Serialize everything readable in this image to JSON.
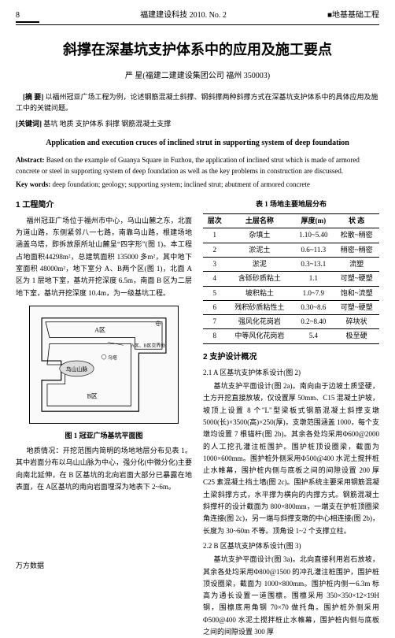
{
  "page_number": "8",
  "journal": "福建建设科技",
  "issue": "2010. No. 2",
  "category": "■地基基础工程",
  "title_cn": "斜撑在深基坑支护体系中的应用及施工要点",
  "author_name": "严  星",
  "author_affil": "(福建二建建设集团公司  福州  350003)",
  "abstract_cn_label": "[摘  要]",
  "abstract_cn": "以福州冠亚广场工程为例，论述钢筋混凝土斜撑、钢斜撑两种斜撑方式在深基坑支护体系中的具体应用及施工中的关键问题。",
  "keywords_cn_label": "[关键词]",
  "keywords_cn": "基坑  地质  支护体系  斜撑  钢筋混凝土支撑",
  "title_en": "Application and execution cruces of inclined strut in supporting system of deep foundation",
  "abstract_en_label": "Abstract:",
  "abstract_en": "Based on the example of Guanya Square in Fuzhou, the application of inclined strut which is made of armored concrete or steel in supporting system of deep foundation as well as the key problems in construction are discussed.",
  "keywords_en_label": "Key words:",
  "keywords_en": "deep foundation; geology; supporting system; inclined strut; abutment of armored concrete",
  "sec1_title": "1 工程简介",
  "sec1_p1": "福州冠亚广场位于福州市中心，乌山山麓之东，北面为道山路，东侧紧邻八一七路，南靠乌山路，根建场地涵盖乌塔，即拆放原所址山麓呈“四字形”(图 1)。本工程占地面积44298m²，总建筑面积 135000 多m²，其中地下室面积 48000m²，地下室分 A、B两个区(图 1)，北面 A 区为 1 层地下室，基坑开挖深度 6.5m，南面 B 区为二层地下室，基坑开挖深度 10.4m，为一级基坑工程。",
  "fig1_caption": "图 1  冠亚广场基坑平面图",
  "fig1_labels": {
    "a": "A区",
    "b": "B区",
    "c": "乌山山脉",
    "d": "A区、B区交界处"
  },
  "sec1_p2": "地质情况：开挖范围内简明的场地地层分布见表 1。其中岩面分布以乌山山脉为中心，强分化(中微分化)主要向南北延伸，在 B 区基坑的北向岩面大部分已暴露在地表面，在 A区基坑的南向岩面埋深为地表下 2~6m。",
  "table1_caption": "表 1  场地主要地层分布",
  "table1_head": [
    "层次",
    "土层名称",
    "厚度(m)",
    "状  态"
  ],
  "table1_rows": [
    [
      "1",
      "杂填土",
      "1.10~5.40",
      "松散~稍密"
    ],
    [
      "2",
      "淤泥土",
      "0.6~11.3",
      "稍密~稍密"
    ],
    [
      "3",
      "淤泥",
      "0.3~13.1",
      "流塑"
    ],
    [
      "4",
      "含砾砂质粘土",
      "1.1",
      "可塑~硬塑"
    ],
    [
      "5",
      "坡积粘土",
      "1.0~7.9",
      "饱和~流塑"
    ],
    [
      "6",
      "残积砂质粘性土",
      "0.30~8.6",
      "可塑~硬塑"
    ],
    [
      "7",
      "强风化花岗岩",
      "0.2~8.40",
      "碎块状"
    ],
    [
      "8",
      "中等风化花岗岩",
      "5.4",
      "极至硬"
    ]
  ],
  "sec2_title": "2 支护设计概况",
  "sec2_1_title": "2.1 A 区基坑支护体系设计(图 2)",
  "sec2_1_p1": "基坑支护平面设计(图 2a)。南向由于边坡土质坚硬，土方开挖直接放坡，仅设置厚 50mm、C15 混凝土护坡，坡顶上设置 8 个\"L\"型梁板式钢筋混凝土斜撑支墩 5000(长)×3500(高)×250(厚)，支墩范围涵盖 1000，每个支墩均设置 7 根锚杆(图 2b)。其余各处均采用Φ600@2000 的人工挖孔灌注桩围护。围护桩顶设圈梁，截面为 1000×600mm。围护桩外侧采用Φ500@400 水泥土搅拌桩止水帷幕，围护桩内侧与底板之间的间隙设置 200 厚 C25 素混凝土挡土墙(图 2c)。围护系统主要采用钢筋混凝土梁斜撑方式，水平撑为横向的内撑方式。钢筋混凝土斜撑杆的设计截面为 800×800mm，一端支在护桩顶圈梁角连接(图 2c)，另一端与斜撑支墩的中心相连接(图 2b)，长度为 30~60m 不等。顶角设 1~2 个支撑立柱。",
  "sec2_2_title": "2.2 B 区基坑支护体系设计(图 3)",
  "sec2_2_p1": "基坑支护平面设计(图 3a)。北向直接利用岩石放坡，其余各处均采用Φ800@1500 的冲孔灌注桩围护，围护桩顶设圈梁，截面为 1000×800mm。围护桩内侧一6.3m 标高为通长设置一道围檩。围檩采用 350×350×12×19H 钢，围檩底用角钢 70×70 做托角。围护桩外侧采用Φ500@400 水泥土搅拌桩止水帷幕，围护桩内侧与底板之间的间隙设置 300 厚",
  "footer": "万方数据"
}
